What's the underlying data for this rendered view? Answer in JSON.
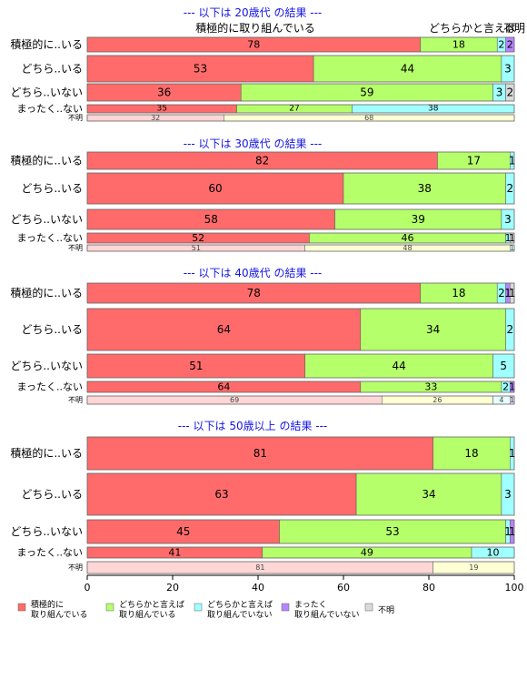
{
  "chart_data": {
    "type": "bar",
    "orientation": "horizontal",
    "stacked": true,
    "xlim": [
      0,
      100
    ],
    "x_ticks": [
      0,
      20,
      40,
      60,
      80,
      100
    ],
    "grid": false,
    "legend_position": "bottom",
    "top_column_label": "積極的に取り組んでいる",
    "top_column_label_2": "どちらかと言えば",
    "top_column_label_3": "不明",
    "series": [
      {
        "name": "積極的に\n取り組んでいる",
        "color": "#FF6B6B"
      },
      {
        "name": "どちらかと言えば\n取り組んでいる",
        "color": "#B5FF6B"
      },
      {
        "name": "どちらかと言えば\n取り組んでいない",
        "color": "#A0FFFF"
      },
      {
        "name": "まったく\n取り組んでいない",
        "color": "#B685FF"
      },
      {
        "name": "不明",
        "color": "#DADADA"
      }
    ],
    "panels": [
      {
        "title": "--- 以下は 20歳代 の結果 ---",
        "rows": [
          {
            "label": "積極的に..いる",
            "values": [
              78,
              18,
              2,
              2,
              0
            ]
          },
          {
            "label": "どちら..いる",
            "values": [
              53,
              44,
              3,
              0,
              0
            ]
          },
          {
            "label": "どちら..いない",
            "values": [
              36,
              59,
              3,
              0,
              2
            ]
          },
          {
            "label": "まったく..ない",
            "values": [
              35,
              27,
              38,
              0,
              0
            ]
          },
          {
            "label": "不明",
            "values": [
              32,
              68,
              0,
              0,
              0
            ]
          }
        ]
      },
      {
        "title": "--- 以下は 30歳代 の結果 ---",
        "rows": [
          {
            "label": "積極的に..いる",
            "values": [
              82,
              17,
              1,
              0,
              0
            ]
          },
          {
            "label": "どちら..いる",
            "values": [
              60,
              38,
              2,
              0,
              0
            ]
          },
          {
            "label": "どちら..いない",
            "values": [
              58,
              39,
              3,
              0,
              0
            ]
          },
          {
            "label": "まったく..ない",
            "values": [
              52,
              46,
              1,
              0,
              1
            ]
          },
          {
            "label": "不明",
            "values": [
              51,
              48,
              1,
              0,
              0
            ]
          }
        ]
      },
      {
        "title": "--- 以下は 40歳代 の結果 ---",
        "rows": [
          {
            "label": "積極的に..いる",
            "values": [
              78,
              18,
              2,
              1,
              1
            ]
          },
          {
            "label": "どちら..いる",
            "values": [
              64,
              34,
              2,
              0,
              0
            ]
          },
          {
            "label": "どちら..いない",
            "values": [
              51,
              44,
              5,
              0,
              0
            ]
          },
          {
            "label": "まったく..ない",
            "values": [
              64,
              33,
              2,
              1,
              0
            ]
          },
          {
            "label": "不明",
            "values": [
              69,
              26,
              4,
              1,
              0
            ]
          }
        ]
      },
      {
        "title": "--- 以下は 50歳以上 の結果 ---",
        "rows": [
          {
            "label": "積極的に..いる",
            "values": [
              81,
              18,
              1,
              0,
              0
            ]
          },
          {
            "label": "どちら..いる",
            "values": [
              63,
              34,
              3,
              0,
              0
            ]
          },
          {
            "label": "どちら..いない",
            "values": [
              45,
              53,
              1,
              1,
              0
            ]
          },
          {
            "label": "まったく..ない",
            "values": [
              41,
              49,
              10,
              0,
              0
            ]
          },
          {
            "label": "不明",
            "values": [
              81,
              19,
              0,
              0,
              0
            ]
          }
        ]
      }
    ]
  }
}
